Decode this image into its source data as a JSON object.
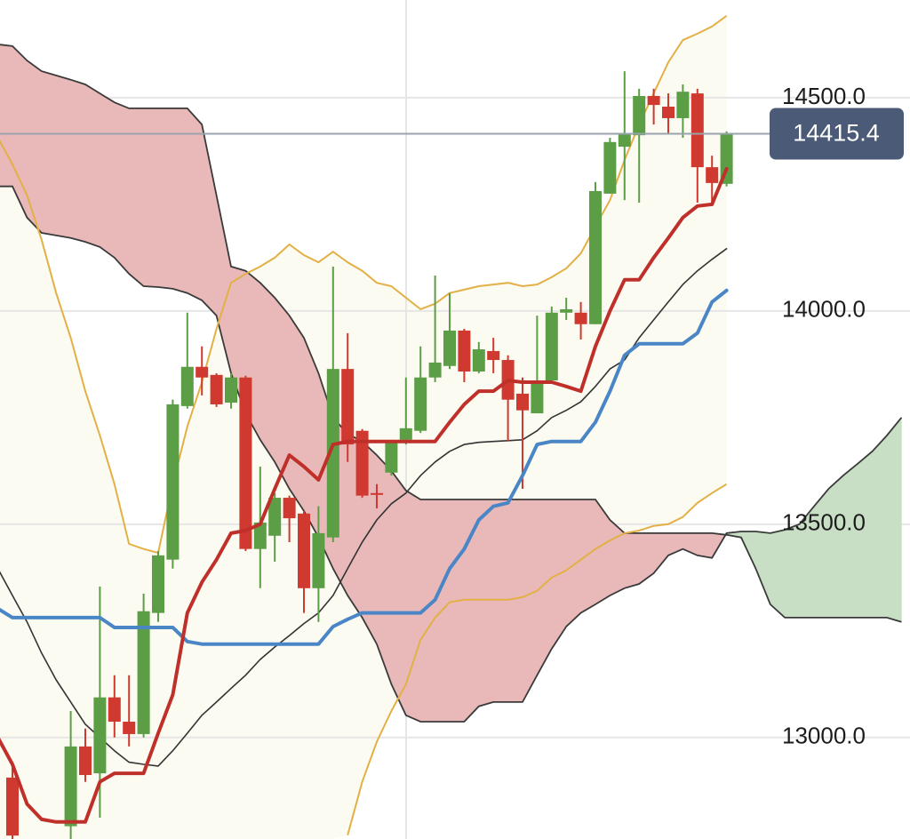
{
  "chart_data": {
    "type": "candlestick",
    "ylim": [
      12762,
      14729
    ],
    "yticks": [
      {
        "value": 13000,
        "label": "13000.0"
      },
      {
        "value": 13500,
        "label": "13500.0"
      },
      {
        "value": 14000,
        "label": "14000.0"
      },
      {
        "value": 14500,
        "label": "14500.0"
      }
    ],
    "grid": true,
    "grid_color": "#e6e6e6",
    "up_color": "#5b9e45",
    "down_color": "#d0392f",
    "open": [
      null,
      12906,
      null,
      null,
      null,
      12792,
      12979,
      12916,
      13094,
      13037,
      13008,
      13292,
      13417,
      13777,
      13869,
      13850,
      13785,
      13844,
      13442,
      13473,
      13562,
      13525,
      13350,
      13469,
      13864,
      13719,
      13573,
      13621,
      13698,
      13719,
      13844,
      13871,
      13954,
      13858,
      13906,
      13885,
      13806,
      13760,
      13837,
      13996,
      13996,
      13969,
      14275,
      14385,
      14412,
      14504,
      14479,
      14452,
      14510,
      14337,
      14298,
      null,
      null,
      null,
      null,
      null,
      null,
      null,
      null,
      null,
      null,
      null,
      null
    ],
    "high": [
      null,
      12937,
      null,
      null,
      null,
      13062,
      13021,
      13354,
      13146,
      13146,
      13337,
      13437,
      13792,
      13996,
      13917,
      13854,
      13854,
      13848,
      13635,
      13573,
      13567,
      13531,
      13542,
      14104,
      13948,
      13723,
      13594,
      13698,
      13844,
      13917,
      14083,
      14042,
      13958,
      13927,
      13937,
      13896,
      13844,
      13989,
      14010,
      14031,
      14021,
      14302,
      14406,
      14562,
      14521,
      14521,
      14510,
      14531,
      14521,
      14364,
      14421,
      null,
      null,
      null,
      null,
      null,
      null,
      null,
      null,
      null,
      null,
      null,
      null
    ],
    "low": [
      null,
      12740,
      null,
      null,
      null,
      12762,
      12896,
      12812,
      13000,
      12979,
      13000,
      13271,
      13396,
      13771,
      13802,
      13775,
      13771,
      13437,
      13350,
      13412,
      13458,
      13292,
      13271,
      13458,
      13646,
      13562,
      13537,
      13614,
      13687,
      13714,
      13833,
      13864,
      13833,
      13854,
      13854,
      13694,
      13583,
      13760,
      13833,
      13979,
      13933,
      13969,
      14275,
      14260,
      14254,
      14437,
      14417,
      14406,
      14254,
      14246,
      14292,
      null,
      null,
      null,
      null,
      null,
      null,
      null,
      null,
      null,
      null,
      null,
      null
    ],
    "close": [
      null,
      12770,
      null,
      null,
      null,
      12979,
      12912,
      13094,
      13037,
      13008,
      13296,
      13427,
      13781,
      13869,
      13844,
      13781,
      13844,
      13442,
      13504,
      13562,
      13514,
      13350,
      13479,
      13864,
      13687,
      13567,
      13569,
      13694,
      13725,
      13844,
      13879,
      13954,
      13858,
      13910,
      13885,
      13792,
      13767,
      13837,
      13996,
      14004,
      13969,
      14281,
      14396,
      14417,
      14504,
      14483,
      14452,
      14514,
      14337,
      14300,
      14415.4,
      null,
      null,
      null,
      null,
      null,
      null,
      null,
      null,
      null,
      null,
      null,
      null
    ],
    "bands": {
      "color": "#e2b045",
      "fill": "#fcfbf2",
      "upper": [
        14406,
        14344,
        14271,
        14167,
        14042,
        13937,
        13812,
        13708,
        13594,
        13454,
        13442,
        13433,
        13594,
        13729,
        13833,
        13958,
        14066,
        14087,
        14104,
        14125,
        14156,
        14131,
        14114,
        14139,
        14114,
        14094,
        14066,
        14058,
        14031,
        14004,
        14017,
        14042,
        14050,
        14058,
        14062,
        14066,
        14058,
        14062,
        14079,
        14100,
        14135,
        14198,
        14260,
        14354,
        14437,
        14510,
        14583,
        14635,
        14650,
        14667,
        14692,
        null,
        null,
        null,
        null,
        null,
        null,
        null,
        null,
        null,
        null,
        null,
        null
      ],
      "lower": [
        null,
        null,
        null,
        null,
        null,
        null,
        null,
        null,
        null,
        null,
        null,
        null,
        null,
        null,
        null,
        null,
        null,
        null,
        null,
        null,
        null,
        null,
        null,
        null,
        12771,
        12896,
        12990,
        13062,
        13125,
        13229,
        13281,
        13317,
        13323,
        13323,
        13323,
        13323,
        13329,
        13344,
        13375,
        13392,
        13417,
        13442,
        13462,
        13479,
        13485,
        13496,
        13500,
        13517,
        13550,
        13573,
        13594,
        null,
        null,
        null,
        null,
        null,
        null,
        null,
        null,
        null,
        null,
        null,
        null
      ]
    },
    "cloud": {
      "up_color": "#c8dfc5",
      "down_color": "#e8b9b8",
      "line_color": "#3a3a3a",
      "span_a": [
        14292,
        14292,
        14219,
        14183,
        14177,
        14171,
        14162,
        14150,
        14125,
        14087,
        14058,
        14056,
        14052,
        14042,
        14025,
        13989,
        13854,
        13760,
        13698,
        13646,
        13583,
        13531,
        13469,
        13396,
        13333,
        13281,
        13219,
        13125,
        13052,
        13037,
        13037,
        13037,
        13037,
        13073,
        13083,
        13083,
        13083,
        13146,
        13208,
        13260,
        13292,
        13312,
        13333,
        13350,
        13360,
        13385,
        13427,
        13442,
        13427,
        13421,
        13479,
        13483,
        13483,
        13479,
        13487,
        13500,
        13542,
        13583,
        13614,
        13642,
        13671,
        13708,
        13750
      ],
      "span_b": [
        14625,
        14621,
        14587,
        14562,
        14552,
        14542,
        14531,
        14510,
        14489,
        14475,
        14475,
        14475,
        14475,
        14475,
        14437,
        14271,
        14104,
        14094,
        14066,
        14031,
        13989,
        13937,
        13854,
        13750,
        13712,
        13694,
        13662,
        13625,
        13579,
        13558,
        13558,
        13558,
        13558,
        13558,
        13558,
        13558,
        13558,
        13558,
        13558,
        13558,
        13558,
        13558,
        13510,
        13479,
        13479,
        13479,
        13479,
        13479,
        13479,
        13479,
        13475,
        13469,
        13396,
        13312,
        13281,
        13281,
        13281,
        13281,
        13281,
        13281,
        13281,
        13281,
        13271
      ]
    },
    "series": [
      {
        "color": "#333333",
        "width": 1.6,
        "values": [
          13396,
          13333,
          13271,
          13198,
          13135,
          13083,
          13031,
          13000,
          12969,
          12942,
          12937,
          12933,
          12969,
          13010,
          13052,
          13083,
          13115,
          13146,
          13183,
          13212,
          13239,
          13267,
          13292,
          13333,
          13396,
          13458,
          13510,
          13548,
          13573,
          13614,
          13646,
          13671,
          13687,
          13692,
          13694,
          13696,
          13698,
          13719,
          13750,
          13767,
          13787,
          13823,
          13864,
          13885,
          13937,
          13979,
          14021,
          14062,
          14094,
          14121,
          14146,
          null,
          null,
          null,
          null,
          null,
          null,
          null,
          null,
          null,
          null,
          null,
          null
        ]
      },
      {
        "color": "#4a86c6",
        "width": 4,
        "values": [
          13302,
          13281,
          13281,
          13281,
          13281,
          13281,
          13281,
          13281,
          13258,
          13258,
          13258,
          13258,
          13258,
          13225,
          13219,
          13219,
          13219,
          13219,
          13219,
          13219,
          13219,
          13219,
          13219,
          13260,
          13277,
          13292,
          13292,
          13292,
          13292,
          13292,
          13323,
          13396,
          13442,
          13510,
          13542,
          13550,
          13614,
          13687,
          13694,
          13694,
          13694,
          13739,
          13812,
          13896,
          13923,
          13923,
          13923,
          13923,
          13948,
          14021,
          14048,
          null,
          null,
          null,
          null,
          null,
          null,
          null,
          null,
          null,
          null,
          null,
          null
        ]
      },
      {
        "color": "#c0302a",
        "width": 4,
        "values": [
          13000,
          12937,
          12844,
          12808,
          12802,
          12802,
          12802,
          12896,
          12916,
          12916,
          12916,
          13010,
          13100,
          13292,
          13364,
          13417,
          13479,
          13485,
          13500,
          13583,
          13662,
          13635,
          13604,
          13687,
          13694,
          13694,
          13694,
          13694,
          13694,
          13694,
          13694,
          13739,
          13781,
          13812,
          13812,
          13837,
          13833,
          13833,
          13833,
          13823,
          13812,
          13917,
          14000,
          14073,
          14073,
          14125,
          14171,
          14219,
          14246,
          14250,
          14333,
          null,
          null,
          null,
          null,
          null,
          null,
          null,
          null,
          null,
          null,
          null,
          null
        ]
      }
    ],
    "last_price": 14415.4,
    "last_price_color": "#9aa3ad",
    "badge_color": "#4b5b77"
  }
}
